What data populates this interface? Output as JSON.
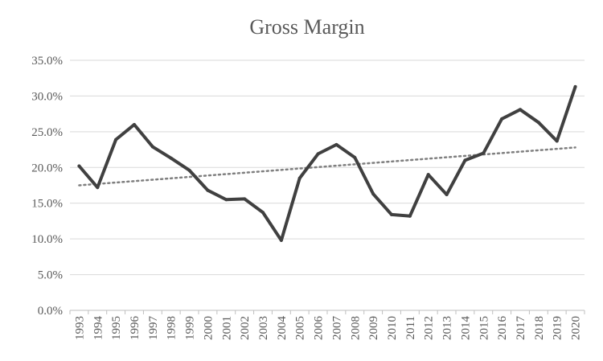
{
  "chart_data": {
    "type": "line",
    "title": "Gross Margin",
    "xlabel": "",
    "ylabel": "",
    "ylim": [
      0,
      35
    ],
    "yticks": [
      "0.0%",
      "5.0%",
      "10.0%",
      "15.0%",
      "20.0%",
      "25.0%",
      "30.0%",
      "35.0%"
    ],
    "grid": true,
    "legend": "none",
    "categories": [
      "1993",
      "1994",
      "1995",
      "1996",
      "1997",
      "1998",
      "1999",
      "2000",
      "2001",
      "2002",
      "2003",
      "2004",
      "2005",
      "2006",
      "2007",
      "2008",
      "2009",
      "2010",
      "2011",
      "2012",
      "2013",
      "2014",
      "2015",
      "2016",
      "2017",
      "2018",
      "2019",
      "2020"
    ],
    "series": [
      {
        "values": [
          20.2,
          17.2,
          23.9,
          26.0,
          22.9,
          21.3,
          19.6,
          16.8,
          15.5,
          15.6,
          13.7,
          9.8,
          18.5,
          21.9,
          23.2,
          21.4,
          16.3,
          13.4,
          13.2,
          19.0,
          16.2,
          21.0,
          22.0,
          26.8,
          28.1,
          26.3,
          23.7,
          31.3
        ],
        "color": "#404040"
      }
    ],
    "trendline": {
      "type": "linear",
      "style": "dotted",
      "color": "#7f7f7f",
      "start": 17.5,
      "end": 22.8
    }
  }
}
